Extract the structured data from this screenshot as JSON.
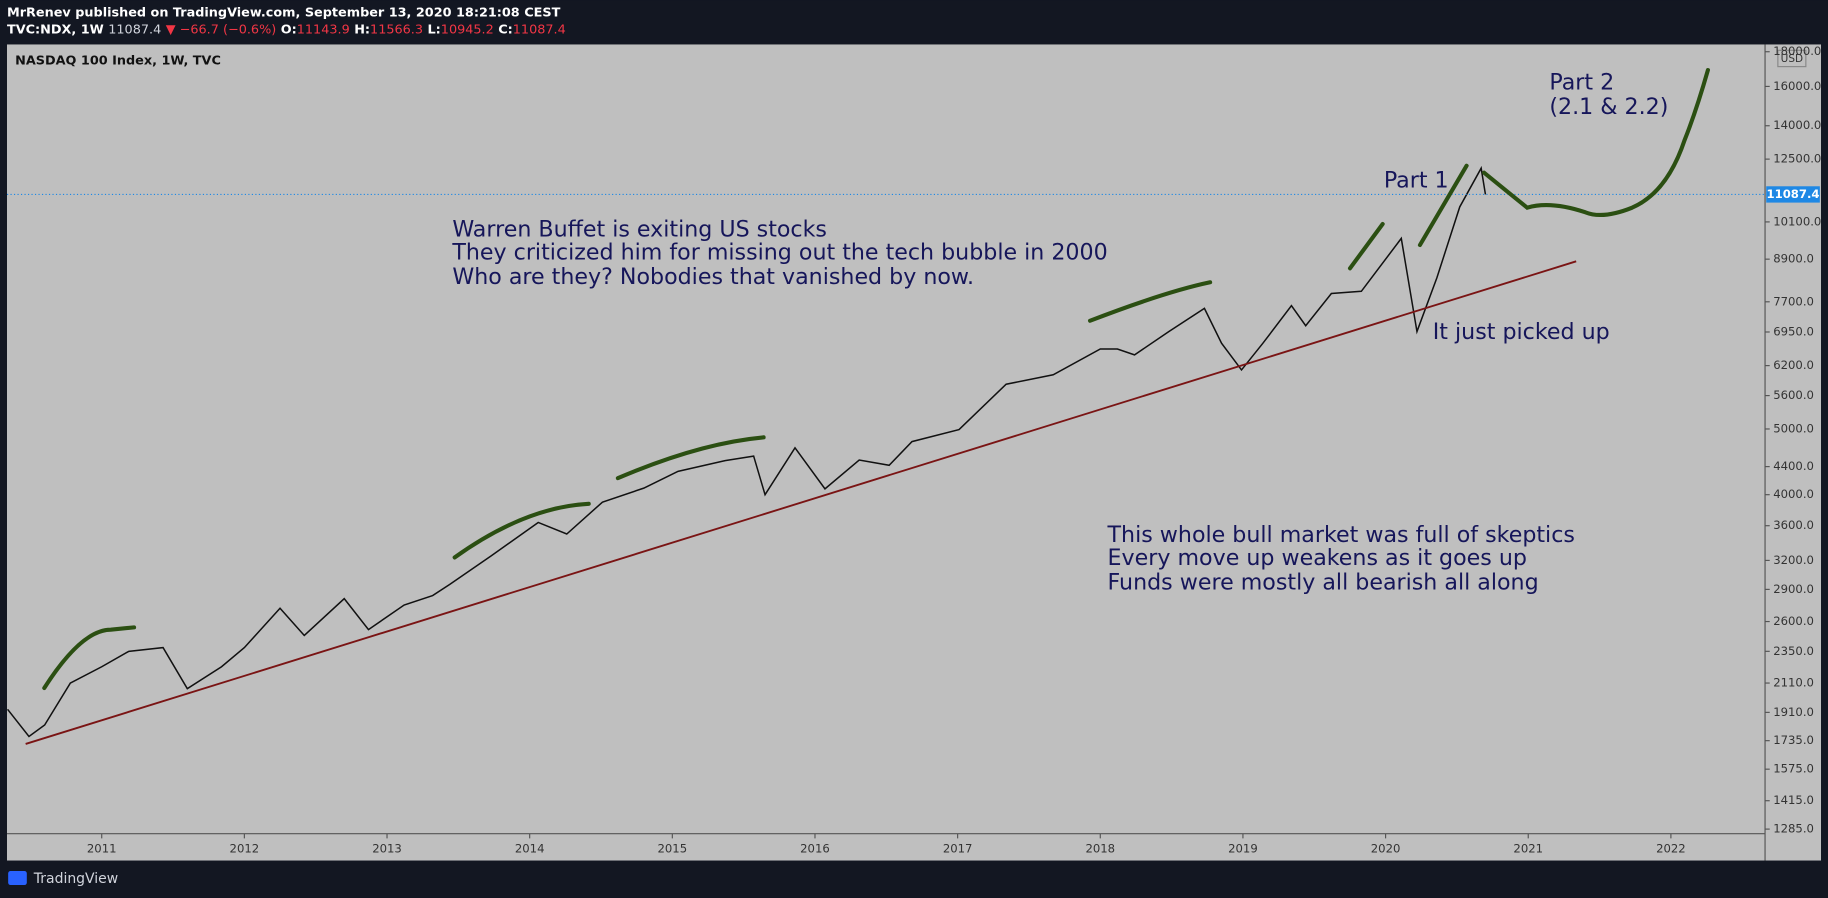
{
  "header": {
    "publisher": "MrRenev published on TradingView.com, September 13, 2020 18:21:08 CEST",
    "symbol": "TVC:NDX, 1W",
    "last": "11087.4",
    "change": "▼ −66.7 (−0.6%)",
    "ohlc": [
      {
        "label": "O:",
        "value": "11143.9"
      },
      {
        "label": "H:",
        "value": "11566.3"
      },
      {
        "label": "L:",
        "value": "10945.2"
      },
      {
        "label": "C:",
        "value": "11087.4"
      }
    ]
  },
  "chart_data": {
    "type": "line",
    "title": "NASDAQ 100 Index, 1W, TVC",
    "currency": "USD",
    "log_scale": true,
    "color": "#111111",
    "x": [
      2010.34,
      2010.49,
      2010.6,
      2010.78,
      2011.0,
      2011.19,
      2011.43,
      2011.6,
      2011.84,
      2012.0,
      2012.25,
      2012.42,
      2012.7,
      2012.87,
      2013.12,
      2013.32,
      2013.44,
      2013.73,
      2014.06,
      2014.26,
      2014.51,
      2014.8,
      2015.04,
      2015.37,
      2015.57,
      2015.65,
      2015.86,
      2016.07,
      2016.31,
      2016.52,
      2016.68,
      2017.01,
      2017.34,
      2017.67,
      2018.0,
      2018.12,
      2018.24,
      2018.48,
      2018.73,
      2018.85,
      2018.99,
      2019.14,
      2019.34,
      2019.44,
      2019.62,
      2019.83,
      2020.11,
      2020.22,
      2020.36,
      2020.52,
      2020.67,
      2020.7
    ],
    "values": [
      1930,
      1760,
      1830,
      2110,
      2230,
      2350,
      2380,
      2070,
      2230,
      2380,
      2720,
      2480,
      2810,
      2530,
      2750,
      2840,
      2950,
      3250,
      3640,
      3500,
      3900,
      4090,
      4330,
      4490,
      4560,
      4000,
      4690,
      4080,
      4500,
      4420,
      4790,
      4990,
      5820,
      6010,
      6560,
      6560,
      6430,
      6960,
      7530,
      6690,
      6110,
      6690,
      7600,
      7100,
      7920,
      7980,
      9550,
      6960,
      8360,
      10630,
      12120,
      11087.4
    ],
    "xlim": [
      2010.336,
      2022.66
    ],
    "ylim": [
      1265,
      18450
    ],
    "xticks": [
      2011,
      2012,
      2013,
      2014,
      2015,
      2016,
      2017,
      2018,
      2019,
      2020,
      2021,
      2022
    ],
    "yticks": [
      {
        "value": 1285,
        "label": "1285.0"
      },
      {
        "value": 1415,
        "label": "1415.0"
      },
      {
        "value": 1575,
        "label": "1575.0"
      },
      {
        "value": 1735,
        "label": "1735.0"
      },
      {
        "value": 1910,
        "label": "1910.0"
      },
      {
        "value": 2110,
        "label": "2110.0"
      },
      {
        "value": 2350,
        "label": "2350.0"
      },
      {
        "value": 2600,
        "label": "2600.0"
      },
      {
        "value": 2900,
        "label": "2900.0"
      },
      {
        "value": 3200,
        "label": "3200.0"
      },
      {
        "value": 3600,
        "label": "3600.0"
      },
      {
        "value": 4000,
        "label": "4000.0"
      },
      {
        "value": 4400,
        "label": "4400.0"
      },
      {
        "value": 5000,
        "label": "5000.0"
      },
      {
        "value": 5600,
        "label": "5600.0"
      },
      {
        "value": 6200,
        "label": "6200.0"
      },
      {
        "value": 6950,
        "label": "6950.0"
      },
      {
        "value": 7700,
        "label": "7700.0"
      },
      {
        "value": 8900,
        "label": "8900.0"
      },
      {
        "value": 10100,
        "label": "10100.0"
      },
      {
        "value": 12500,
        "label": "12500.0"
      },
      {
        "value": 14000,
        "label": "14000.0"
      },
      {
        "value": 16000,
        "label": "16000.0"
      },
      {
        "value": 18000,
        "label": "18000.0"
      }
    ],
    "annotations": [
      "Warren Buffet is exiting US stocks",
      "They criticized him for missing out the tech bubble in 2000",
      "Who are they? Nobodies that vanished by now.",
      "Part 1",
      "Part 2",
      "(2.1 & 2.2)",
      "It just picked up",
      "This whole bull market was full of skeptics",
      "Every move up weakens as it goes up",
      "Funds were mostly all bearish all along"
    ]
  },
  "footer": {
    "brand": "TradingView"
  }
}
